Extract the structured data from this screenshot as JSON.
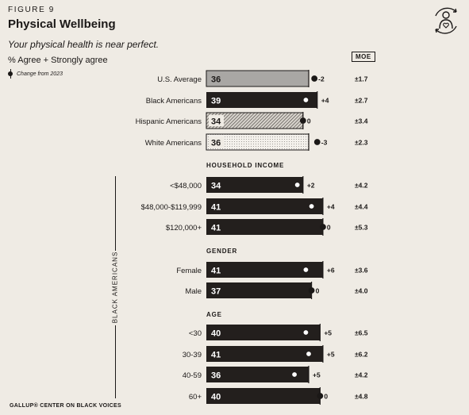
{
  "figure_label": "FIGURE 9",
  "title": "Physical Wellbeing",
  "subtitle": "Your physical health is near perfect.",
  "measure": "% Agree + Strongly agree",
  "change_note": "Change from 2023",
  "moe_header": "MOE",
  "side_label": "BLACK AMERICANS",
  "footer": "GALLUP® CENTER ON BLACK VOICES",
  "logo_icon": "person-heart-cycle-icon",
  "colors": {
    "background": "#efebe4",
    "bar_dark": "#231f1d",
    "bar_us": "#a9a7a4",
    "ink": "#1b1817"
  },
  "chart_data": {
    "type": "bar",
    "orientation": "horizontal",
    "xlim": [
      0,
      60
    ],
    "sections": [
      {
        "header": "",
        "rows": [
          {
            "label": "U.S. Average",
            "value": 36,
            "change": "-2",
            "moe": "±1.7",
            "style": "gray"
          },
          {
            "label": "Black Americans",
            "value": 39,
            "change": "+4",
            "moe": "±2.7",
            "style": "dark"
          },
          {
            "label": "Hispanic Americans",
            "value": 34,
            "change": "0",
            "moe": "±3.4",
            "style": "hatch"
          },
          {
            "label": "White Americans",
            "value": 36,
            "change": "-3",
            "moe": "±2.3",
            "style": "dots"
          }
        ]
      },
      {
        "header": "HOUSEHOLD INCOME",
        "rows": [
          {
            "label": "<$48,000",
            "value": 34,
            "change": "+2",
            "moe": "±4.2",
            "style": "dark"
          },
          {
            "label": "$48,000-$119,999",
            "value": 41,
            "change": "+4",
            "moe": "±4.4",
            "style": "dark"
          },
          {
            "label": "$120,000+",
            "value": 41,
            "change": "0",
            "moe": "±5.3",
            "style": "dark"
          }
        ]
      },
      {
        "header": "GENDER",
        "rows": [
          {
            "label": "Female",
            "value": 41,
            "change": "+6",
            "moe": "±3.6",
            "style": "dark"
          },
          {
            "label": "Male",
            "value": 37,
            "change": "0",
            "moe": "±4.0",
            "style": "dark"
          }
        ]
      },
      {
        "header": "AGE",
        "rows": [
          {
            "label": "<30",
            "value": 40,
            "change": "+5",
            "moe": "±6.5",
            "style": "dark"
          },
          {
            "label": "30-39",
            "value": 41,
            "change": "+5",
            "moe": "±6.2",
            "style": "dark"
          },
          {
            "label": "40-59",
            "value": 36,
            "change": "+5",
            "moe": "±4.2",
            "style": "dark"
          },
          {
            "label": "60+",
            "value": 40,
            "change": "0",
            "moe": "±4.8",
            "style": "dark"
          }
        ]
      }
    ]
  }
}
